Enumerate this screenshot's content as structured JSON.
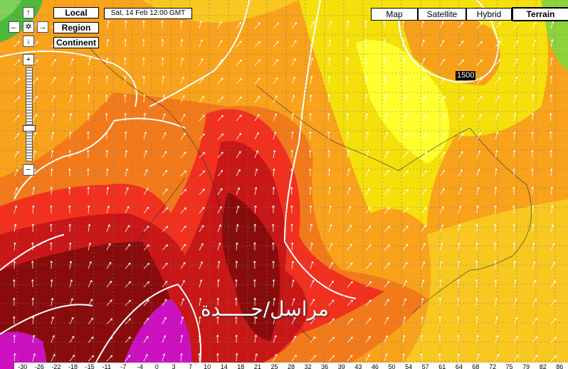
{
  "controls": {
    "view_buttons": [
      "Local",
      "Region",
      "Continent"
    ],
    "date": "Sat, 14 Feb 12:00 GMT",
    "map_types": [
      "Map",
      "Satellite",
      "Hybrid",
      "Terrain"
    ]
  },
  "contour_label": "1500",
  "watermark": "مراسل/جـــــدة",
  "legend": {
    "labels": [
      "-30",
      "-26",
      "-22",
      "-18",
      "-15",
      "-11",
      "-7",
      "-4",
      "0",
      "3",
      "7",
      "10",
      "14",
      "18",
      "21",
      "25",
      "28",
      "32",
      "36",
      "39",
      "43",
      "46",
      "50",
      "54",
      "57",
      "61",
      "64",
      "68",
      "72",
      "75",
      "79",
      "82",
      "86"
    ]
  }
}
